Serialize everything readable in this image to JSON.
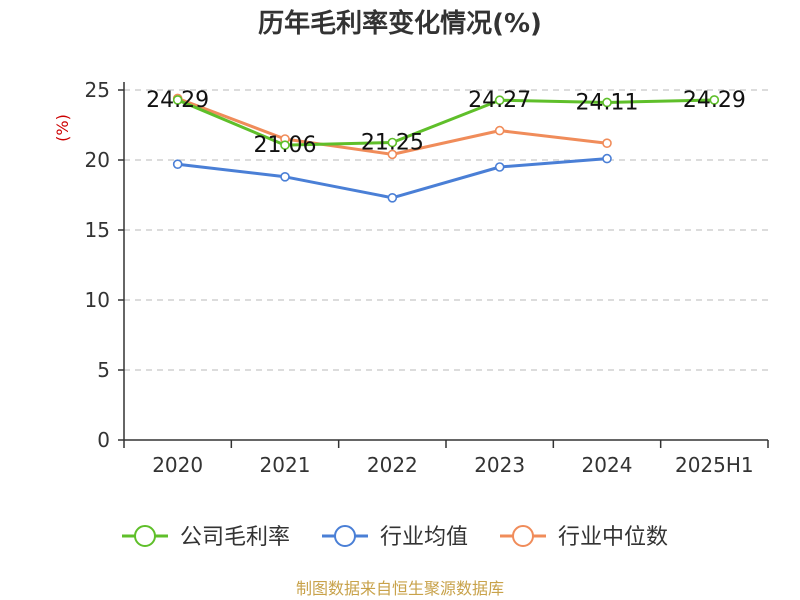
{
  "chart_data": {
    "type": "line",
    "title": "历年毛利率变化情况(%)",
    "ylabel": "(%)",
    "xlabel": "",
    "categories": [
      "2020",
      "2021",
      "2022",
      "2023",
      "2024",
      "2025H1"
    ],
    "ylim": [
      0,
      25
    ],
    "yticks": [
      0,
      5,
      10,
      15,
      20,
      25
    ],
    "grid": true,
    "legend_position": "bottom",
    "series": [
      {
        "name": "公司毛利率",
        "color": "#5fbf2a",
        "values": [
          24.29,
          21.06,
          21.25,
          24.27,
          24.11,
          24.29
        ],
        "labels": [
          "24.29",
          "21.06",
          "21.25",
          "24.27",
          "24.11",
          "24.29"
        ]
      },
      {
        "name": "行业均值",
        "color": "#4a7fd6",
        "values": [
          19.7,
          18.8,
          17.3,
          19.5,
          20.1,
          null
        ]
      },
      {
        "name": "行业中位数",
        "color": "#f08c5a",
        "values": [
          24.4,
          21.5,
          20.4,
          22.1,
          21.2,
          null
        ]
      }
    ]
  },
  "source_text": "制图数据来自恒生聚源数据库"
}
